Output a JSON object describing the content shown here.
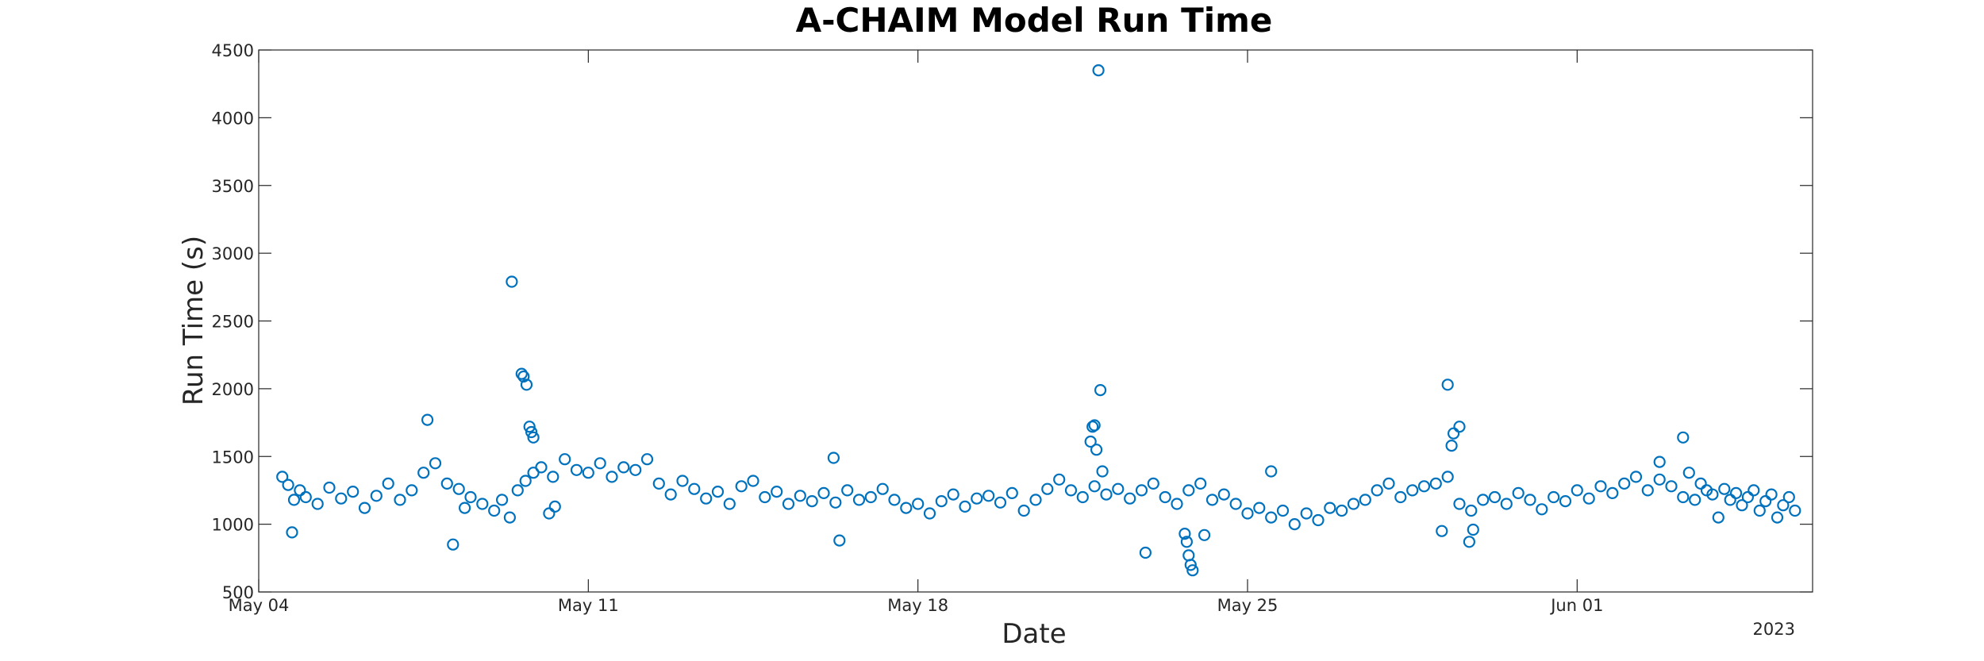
{
  "chart_data": {
    "type": "scatter",
    "title": "A-CHAIM Model Run Time",
    "xlabel": "Date",
    "ylabel": "Run Time (s)",
    "x_axis_year_label": "2023",
    "x_ticks": [
      {
        "date": "2023-05-04",
        "label": "May 04"
      },
      {
        "date": "2023-05-11",
        "label": "May 11"
      },
      {
        "date": "2023-05-18",
        "label": "May 18"
      },
      {
        "date": "2023-05-25",
        "label": "May 25"
      },
      {
        "date": "2023-06-01",
        "label": "Jun 01"
      }
    ],
    "xlim": [
      "2023-05-04",
      "2023-06-06"
    ],
    "ylim": [
      500,
      4500
    ],
    "y_ticks": [
      500,
      1000,
      1500,
      2000,
      2500,
      3000,
      3500,
      4000,
      4500
    ],
    "grid": false,
    "marker": "circle-open",
    "color": "#0072BD",
    "series": [
      {
        "x": [
          "2023-05-04T12:00",
          "2023-05-04T15:00",
          "2023-05-04T18:00",
          "2023-05-04T21:00",
          "2023-05-05T00:00",
          "2023-05-05T06:00",
          "2023-05-05T12:00",
          "2023-05-05T18:00",
          "2023-05-06T00:00",
          "2023-05-06T06:00",
          "2023-05-06T12:00",
          "2023-05-06T18:00",
          "2023-05-07T00:00",
          "2023-05-07T06:00",
          "2023-05-07T12:00",
          "2023-05-07T18:00",
          "2023-05-08T00:00",
          "2023-05-08T06:00",
          "2023-05-08T12:00",
          "2023-05-08T18:00",
          "2023-05-09T00:00",
          "2023-05-09T04:00",
          "2023-05-09T08:00",
          "2023-05-09T12:00",
          "2023-05-09T16:00",
          "2023-05-09T20:00",
          "2023-05-10T00:00",
          "2023-05-10T06:00",
          "2023-05-10T12:00",
          "2023-05-10T18:00",
          "2023-05-11T00:00",
          "2023-05-11T06:00",
          "2023-05-11T12:00",
          "2023-05-11T18:00",
          "2023-05-12T00:00",
          "2023-05-12T06:00",
          "2023-05-12T12:00",
          "2023-05-12T18:00",
          "2023-05-13T00:00",
          "2023-05-13T06:00",
          "2023-05-13T12:00",
          "2023-05-13T18:00",
          "2023-05-14T00:00",
          "2023-05-14T06:00",
          "2023-05-14T12:00",
          "2023-05-14T18:00",
          "2023-05-15T00:00",
          "2023-05-15T06:00",
          "2023-05-15T12:00",
          "2023-05-15T18:00",
          "2023-05-16T00:00",
          "2023-05-16T06:00",
          "2023-05-16T12:00",
          "2023-05-16T18:00",
          "2023-05-17T00:00",
          "2023-05-17T06:00",
          "2023-05-17T12:00",
          "2023-05-17T18:00",
          "2023-05-18T00:00",
          "2023-05-18T06:00",
          "2023-05-18T12:00",
          "2023-05-18T18:00",
          "2023-05-19T00:00",
          "2023-05-19T06:00",
          "2023-05-19T12:00",
          "2023-05-19T18:00",
          "2023-05-20T00:00",
          "2023-05-20T06:00",
          "2023-05-20T12:00",
          "2023-05-20T18:00",
          "2023-05-21T00:00",
          "2023-05-21T06:00",
          "2023-05-21T12:00",
          "2023-05-21T18:00",
          "2023-05-22T00:00",
          "2023-05-22T06:00",
          "2023-05-22T12:00",
          "2023-05-22T18:00",
          "2023-05-23T00:00",
          "2023-05-23T06:00",
          "2023-05-23T12:00",
          "2023-05-23T18:00",
          "2023-05-24T00:00",
          "2023-05-24T06:00",
          "2023-05-24T12:00",
          "2023-05-24T18:00",
          "2023-05-25T00:00",
          "2023-05-25T06:00",
          "2023-05-25T12:00",
          "2023-05-25T18:00",
          "2023-05-26T00:00",
          "2023-05-26T06:00",
          "2023-05-26T12:00",
          "2023-05-26T18:00",
          "2023-05-27T00:00",
          "2023-05-27T06:00",
          "2023-05-27T12:00",
          "2023-05-27T18:00",
          "2023-05-28T00:00",
          "2023-05-28T06:00",
          "2023-05-28T12:00",
          "2023-05-28T18:00",
          "2023-05-29T00:00",
          "2023-05-29T06:00",
          "2023-05-29T12:00",
          "2023-05-29T18:00",
          "2023-05-30T00:00",
          "2023-05-30T06:00",
          "2023-05-30T12:00",
          "2023-05-30T18:00",
          "2023-05-31T00:00",
          "2023-05-31T06:00",
          "2023-05-31T12:00",
          "2023-05-31T18:00",
          "2023-06-01T00:00",
          "2023-06-01T06:00",
          "2023-06-01T12:00",
          "2023-06-01T18:00",
          "2023-06-02T00:00",
          "2023-06-02T06:00",
          "2023-06-02T12:00",
          "2023-06-02T18:00",
          "2023-06-03T00:00",
          "2023-06-03T06:00",
          "2023-06-03T12:00",
          "2023-06-03T18:00",
          "2023-05-04T17:00",
          "2023-05-07T14:00",
          "2023-05-08T03:00",
          "2023-05-08T09:00",
          "2023-05-09T09:00",
          "2023-05-09T14:00",
          "2023-05-09T15:00",
          "2023-05-09T16:30",
          "2023-05-09T18:00",
          "2023-05-09T19:00",
          "2023-05-09T20:00",
          "2023-05-10T04:00",
          "2023-05-10T07:00",
          "2023-05-16T05:00",
          "2023-05-16T08:00",
          "2023-05-21T16:00",
          "2023-05-21T17:00",
          "2023-05-21T18:00",
          "2023-05-21T19:00",
          "2023-05-21T20:00",
          "2023-05-21T21:00",
          "2023-05-21T22:00",
          "2023-05-22T20:00",
          "2023-05-23T16:00",
          "2023-05-23T17:00",
          "2023-05-23T18:00",
          "2023-05-23T19:00",
          "2023-05-23T20:00",
          "2023-05-24T02:00",
          "2023-05-25T12:00",
          "2023-05-29T03:00",
          "2023-05-29T06:00",
          "2023-05-29T08:00",
          "2023-05-29T09:00",
          "2023-05-29T12:00",
          "2023-05-29T17:00",
          "2023-05-29T19:00",
          "2023-06-02T18:00",
          "2023-06-03T06:00",
          "2023-06-03T09:00",
          "2023-06-03T15:00",
          "2023-06-03T21:00",
          "2023-06-04T00:00",
          "2023-06-04T03:00",
          "2023-06-04T06:00",
          "2023-06-04T09:00",
          "2023-06-04T12:00",
          "2023-06-04T15:00",
          "2023-06-04T18:00",
          "2023-06-04T21:00",
          "2023-06-05T00:00",
          "2023-06-05T03:00",
          "2023-06-05T06:00",
          "2023-06-05T09:00",
          "2023-06-05T12:00",
          "2023-06-05T15:00"
        ],
        "y": [
          1350,
          1290,
          1180,
          1250,
          1200,
          1150,
          1270,
          1190,
          1240,
          1120,
          1210,
          1300,
          1180,
          1250,
          1380,
          1450,
          1300,
          1260,
          1200,
          1150,
          1100,
          1180,
          1050,
          1250,
          1320,
          1380,
          1420,
          1350,
          1480,
          1400,
          1380,
          1450,
          1350,
          1420,
          1400,
          1480,
          1300,
          1220,
          1320,
          1260,
          1190,
          1240,
          1150,
          1280,
          1320,
          1200,
          1240,
          1150,
          1210,
          1170,
          1230,
          1160,
          1250,
          1180,
          1200,
          1260,
          1180,
          1120,
          1150,
          1080,
          1170,
          1220,
          1130,
          1190,
          1210,
          1160,
          1230,
          1100,
          1180,
          1260,
          1330,
          1250,
          1200,
          1280,
          1220,
          1260,
          1190,
          1250,
          1300,
          1200,
          1150,
          1250,
          1300,
          1180,
          1220,
          1150,
          1080,
          1120,
          1050,
          1100,
          1000,
          1080,
          1030,
          1120,
          1100,
          1150,
          1180,
          1250,
          1300,
          1200,
          1250,
          1280,
          1300,
          1350,
          1150,
          1100,
          1180,
          1200,
          1150,
          1230,
          1180,
          1110,
          1200,
          1170,
          1250,
          1190,
          1280,
          1230,
          1300,
          1350,
          1250,
          1330,
          1280,
          1200,
          1180,
          1250,
          940,
          1770,
          850,
          1120,
          2790,
          2110,
          2090,
          2030,
          1720,
          1680,
          1640,
          1080,
          1130,
          1490,
          880,
          1610,
          1720,
          1730,
          1550,
          4350,
          1990,
          1390,
          790,
          930,
          870,
          770,
          700,
          660,
          920,
          1390,
          950,
          2030,
          1580,
          1670,
          1720,
          870,
          960,
          1460,
          1640,
          1380,
          1300,
          1220,
          1050,
          1260,
          1180,
          1230,
          1140,
          1200,
          1250,
          1100,
          1170,
          1220,
          1050,
          1140,
          1200,
          1100
        ]
      }
    ]
  }
}
